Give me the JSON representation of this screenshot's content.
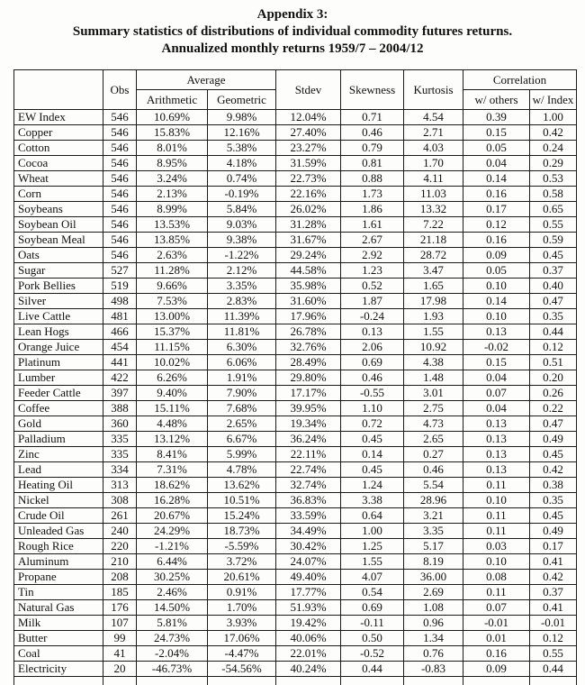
{
  "title": {
    "line1": "Appendix 3:",
    "line2": "Summary statistics of distributions of individual commodity futures returns.",
    "line3": "Annualized monthly returns 1959/7 – 2004/12"
  },
  "table": {
    "header": {
      "obs": "Obs",
      "average": "Average",
      "arithmetic": "Arithmetic",
      "geometric": "Geometric",
      "stdev": "Stdev",
      "skewness": "Skewness",
      "kurtosis": "Kurtosis",
      "correlation": "Correlation",
      "w_others": "w/ others",
      "w_index": "w/ Index"
    },
    "rows": [
      {
        "name": "EW Index",
        "obs": "546",
        "arithmetic": "10.69%",
        "geometric": "9.98%",
        "stdev": "12.04%",
        "skewness": "0.71",
        "kurtosis": "4.54",
        "w_others": "0.39",
        "w_index": "1.00"
      },
      {
        "name": "Copper",
        "obs": "546",
        "arithmetic": "15.83%",
        "geometric": "12.16%",
        "stdev": "27.40%",
        "skewness": "0.46",
        "kurtosis": "2.71",
        "w_others": "0.15",
        "w_index": "0.42"
      },
      {
        "name": "Cotton",
        "obs": "546",
        "arithmetic": "8.01%",
        "geometric": "5.38%",
        "stdev": "23.27%",
        "skewness": "0.79",
        "kurtosis": "4.03",
        "w_others": "0.05",
        "w_index": "0.24"
      },
      {
        "name": "Cocoa",
        "obs": "546",
        "arithmetic": "8.95%",
        "geometric": "4.18%",
        "stdev": "31.59%",
        "skewness": "0.81",
        "kurtosis": "1.70",
        "w_others": "0.04",
        "w_index": "0.29"
      },
      {
        "name": "Wheat",
        "obs": "546",
        "arithmetic": "3.24%",
        "geometric": "0.74%",
        "stdev": "22.73%",
        "skewness": "0.88",
        "kurtosis": "4.11",
        "w_others": "0.14",
        "w_index": "0.53"
      },
      {
        "name": "Corn",
        "obs": "546",
        "arithmetic": "2.13%",
        "geometric": "-0.19%",
        "stdev": "22.16%",
        "skewness": "1.73",
        "kurtosis": "11.03",
        "w_others": "0.16",
        "w_index": "0.58"
      },
      {
        "name": "Soybeans",
        "obs": "546",
        "arithmetic": "8.99%",
        "geometric": "5.84%",
        "stdev": "26.02%",
        "skewness": "1.86",
        "kurtosis": "13.32",
        "w_others": "0.17",
        "w_index": "0.65"
      },
      {
        "name": "Soybean Oil",
        "obs": "546",
        "arithmetic": "13.53%",
        "geometric": "9.03%",
        "stdev": "31.28%",
        "skewness": "1.61",
        "kurtosis": "7.22",
        "w_others": "0.12",
        "w_index": "0.55"
      },
      {
        "name": "Soybean Meal",
        "obs": "546",
        "arithmetic": "13.85%",
        "geometric": "9.38%",
        "stdev": "31.67%",
        "skewness": "2.67",
        "kurtosis": "21.18",
        "w_others": "0.16",
        "w_index": "0.59"
      },
      {
        "name": "Oats",
        "obs": "546",
        "arithmetic": "2.63%",
        "geometric": "-1.22%",
        "stdev": "29.24%",
        "skewness": "2.92",
        "kurtosis": "28.72",
        "w_others": "0.09",
        "w_index": "0.45"
      },
      {
        "name": "Sugar",
        "obs": "527",
        "arithmetic": "11.28%",
        "geometric": "2.12%",
        "stdev": "44.58%",
        "skewness": "1.23",
        "kurtosis": "3.47",
        "w_others": "0.05",
        "w_index": "0.37"
      },
      {
        "name": "Pork Bellies",
        "obs": "519",
        "arithmetic": "9.66%",
        "geometric": "3.35%",
        "stdev": "35.98%",
        "skewness": "0.52",
        "kurtosis": "1.65",
        "w_others": "0.10",
        "w_index": "0.40"
      },
      {
        "name": "Silver",
        "obs": "498",
        "arithmetic": "7.53%",
        "geometric": "2.83%",
        "stdev": "31.60%",
        "skewness": "1.87",
        "kurtosis": "17.98",
        "w_others": "0.14",
        "w_index": "0.47"
      },
      {
        "name": "Live Cattle",
        "obs": "481",
        "arithmetic": "13.00%",
        "geometric": "11.39%",
        "stdev": "17.96%",
        "skewness": "-0.24",
        "kurtosis": "1.93",
        "w_others": "0.10",
        "w_index": "0.35"
      },
      {
        "name": "Lean Hogs",
        "obs": "466",
        "arithmetic": "15.37%",
        "geometric": "11.81%",
        "stdev": "26.78%",
        "skewness": "0.13",
        "kurtosis": "1.55",
        "w_others": "0.13",
        "w_index": "0.44"
      },
      {
        "name": "Orange Juice",
        "obs": "454",
        "arithmetic": "11.15%",
        "geometric": "6.30%",
        "stdev": "32.76%",
        "skewness": "2.06",
        "kurtosis": "10.92",
        "w_others": "-0.02",
        "w_index": "0.12"
      },
      {
        "name": "Platinum",
        "obs": "441",
        "arithmetic": "10.02%",
        "geometric": "6.06%",
        "stdev": "28.49%",
        "skewness": "0.69",
        "kurtosis": "4.38",
        "w_others": "0.15",
        "w_index": "0.51"
      },
      {
        "name": "Lumber",
        "obs": "422",
        "arithmetic": "6.26%",
        "geometric": "1.91%",
        "stdev": "29.80%",
        "skewness": "0.46",
        "kurtosis": "1.48",
        "w_others": "0.04",
        "w_index": "0.20"
      },
      {
        "name": "Feeder Cattle",
        "obs": "397",
        "arithmetic": "9.40%",
        "geometric": "7.90%",
        "stdev": "17.17%",
        "skewness": "-0.55",
        "kurtosis": "3.01",
        "w_others": "0.07",
        "w_index": "0.26"
      },
      {
        "name": "Coffee",
        "obs": "388",
        "arithmetic": "15.11%",
        "geometric": "7.68%",
        "stdev": "39.95%",
        "skewness": "1.10",
        "kurtosis": "2.75",
        "w_others": "0.04",
        "w_index": "0.22"
      },
      {
        "name": "Gold",
        "obs": "360",
        "arithmetic": "4.48%",
        "geometric": "2.65%",
        "stdev": "19.34%",
        "skewness": "0.72",
        "kurtosis": "4.73",
        "w_others": "0.13",
        "w_index": "0.47"
      },
      {
        "name": "Palladium",
        "obs": "335",
        "arithmetic": "13.12%",
        "geometric": "6.67%",
        "stdev": "36.24%",
        "skewness": "0.45",
        "kurtosis": "2.65",
        "w_others": "0.13",
        "w_index": "0.49"
      },
      {
        "name": "Zinc",
        "obs": "335",
        "arithmetic": "8.41%",
        "geometric": "5.99%",
        "stdev": "22.11%",
        "skewness": "0.14",
        "kurtosis": "0.27",
        "w_others": "0.13",
        "w_index": "0.45"
      },
      {
        "name": "Lead",
        "obs": "334",
        "arithmetic": "7.31%",
        "geometric": "4.78%",
        "stdev": "22.74%",
        "skewness": "0.45",
        "kurtosis": "0.46",
        "w_others": "0.13",
        "w_index": "0.42"
      },
      {
        "name": "Heating Oil",
        "obs": "313",
        "arithmetic": "18.62%",
        "geometric": "13.62%",
        "stdev": "32.74%",
        "skewness": "1.24",
        "kurtosis": "5.54",
        "w_others": "0.11",
        "w_index": "0.38"
      },
      {
        "name": "Nickel",
        "obs": "308",
        "arithmetic": "16.28%",
        "geometric": "10.51%",
        "stdev": "36.83%",
        "skewness": "3.38",
        "kurtosis": "28.96",
        "w_others": "0.10",
        "w_index": "0.35"
      },
      {
        "name": "Crude Oil",
        "obs": "261",
        "arithmetic": "20.67%",
        "geometric": "15.24%",
        "stdev": "33.59%",
        "skewness": "0.64",
        "kurtosis": "3.21",
        "w_others": "0.11",
        "w_index": "0.45"
      },
      {
        "name": "Unleaded Gas",
        "obs": "240",
        "arithmetic": "24.29%",
        "geometric": "18.73%",
        "stdev": "34.49%",
        "skewness": "1.00",
        "kurtosis": "3.35",
        "w_others": "0.11",
        "w_index": "0.49"
      },
      {
        "name": "Rough Rice",
        "obs": "220",
        "arithmetic": "-1.21%",
        "geometric": "-5.59%",
        "stdev": "30.42%",
        "skewness": "1.25",
        "kurtosis": "5.17",
        "w_others": "0.03",
        "w_index": "0.17"
      },
      {
        "name": "Aluminum",
        "obs": "210",
        "arithmetic": "6.44%",
        "geometric": "3.72%",
        "stdev": "24.07%",
        "skewness": "1.55",
        "kurtosis": "8.19",
        "w_others": "0.10",
        "w_index": "0.41"
      },
      {
        "name": "Propane",
        "obs": "208",
        "arithmetic": "30.25%",
        "geometric": "20.61%",
        "stdev": "49.40%",
        "skewness": "4.07",
        "kurtosis": "36.00",
        "w_others": "0.08",
        "w_index": "0.42"
      },
      {
        "name": "Tin",
        "obs": "185",
        "arithmetic": "2.46%",
        "geometric": "0.91%",
        "stdev": "17.77%",
        "skewness": "0.54",
        "kurtosis": "2.69",
        "w_others": "0.11",
        "w_index": "0.37"
      },
      {
        "name": "Natural Gas",
        "obs": "176",
        "arithmetic": "14.50%",
        "geometric": "1.70%",
        "stdev": "51.93%",
        "skewness": "0.69",
        "kurtosis": "1.08",
        "w_others": "0.07",
        "w_index": "0.41"
      },
      {
        "name": "Milk",
        "obs": "107",
        "arithmetic": "5.81%",
        "geometric": "3.93%",
        "stdev": "19.42%",
        "skewness": "-0.11",
        "kurtosis": "0.96",
        "w_others": "-0.01",
        "w_index": "-0.01"
      },
      {
        "name": "Butter",
        "obs": "99",
        "arithmetic": "24.73%",
        "geometric": "17.06%",
        "stdev": "40.06%",
        "skewness": "0.50",
        "kurtosis": "1.34",
        "w_others": "0.01",
        "w_index": "0.12"
      },
      {
        "name": "Coal",
        "obs": "41",
        "arithmetic": "-2.04%",
        "geometric": "-4.47%",
        "stdev": "22.01%",
        "skewness": "-0.52",
        "kurtosis": "0.76",
        "w_others": "0.16",
        "w_index": "0.55"
      },
      {
        "name": "Electricity",
        "obs": "20",
        "arithmetic": "-46.73%",
        "geometric": "-54.56%",
        "stdev": "40.24%",
        "skewness": "0.44",
        "kurtosis": "-0.83",
        "w_others": "0.09",
        "w_index": "0.44"
      }
    ]
  }
}
